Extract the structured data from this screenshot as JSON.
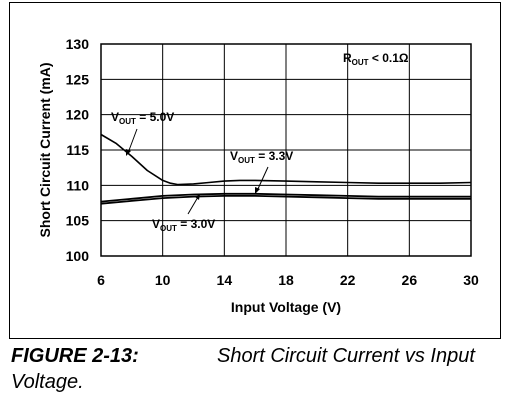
{
  "chart_data": {
    "type": "line",
    "title": "",
    "xlabel": "Input Voltage (V)",
    "ylabel": "Short Circuit Current (mA)",
    "xlim": [
      6,
      30
    ],
    "ylim": [
      100,
      130
    ],
    "xticks": [
      "6",
      "10",
      "14",
      "18",
      "22",
      "26",
      "30"
    ],
    "yticks": [
      "100",
      "105",
      "110",
      "115",
      "120",
      "125",
      "130"
    ],
    "grid": true,
    "legend": "annotations",
    "series": [
      {
        "name": "VOUT = 5.0V",
        "label_main": "V",
        "label_sub": "OUT",
        "label_rest": " = 5.0V",
        "x": [
          6,
          7,
          8,
          9,
          10,
          10.5,
          11,
          12,
          13,
          14,
          15,
          16,
          18,
          20,
          22,
          24,
          26,
          28,
          30
        ],
        "y": [
          117.2,
          115.9,
          114.1,
          112.1,
          110.7,
          110.3,
          110.1,
          110.2,
          110.4,
          110.6,
          110.7,
          110.7,
          110.6,
          110.5,
          110.4,
          110.3,
          110.3,
          110.3,
          110.4
        ]
      },
      {
        "name": "VOUT = 3.3V",
        "label_main": "V",
        "label_sub": "OUT",
        "label_rest": " = 3.3V",
        "x": [
          6,
          8,
          10,
          12,
          14,
          16,
          18,
          20,
          22,
          24,
          26,
          28,
          30
        ],
        "y": [
          107.7,
          108.1,
          108.5,
          108.7,
          108.8,
          108.8,
          108.7,
          108.6,
          108.5,
          108.4,
          108.4,
          108.4,
          108.4
        ]
      },
      {
        "name": "VOUT = 3.0V",
        "label_main": "V",
        "label_sub": "OUT",
        "label_rest": " = 3.0V",
        "x": [
          6,
          8,
          10,
          12,
          14,
          16,
          18,
          20,
          22,
          24,
          26,
          28,
          30
        ],
        "y": [
          107.4,
          107.8,
          108.2,
          108.4,
          108.5,
          108.5,
          108.4,
          108.3,
          108.2,
          108.1,
          108.1,
          108.1,
          108.1
        ]
      }
    ],
    "note_main": "R",
    "note_sub": "OUT",
    "note_rest": " < 0.1Ω"
  },
  "caption": {
    "figure_number": "FIGURE 2-13:",
    "text": "Short Circuit Current vs Input Voltage."
  }
}
